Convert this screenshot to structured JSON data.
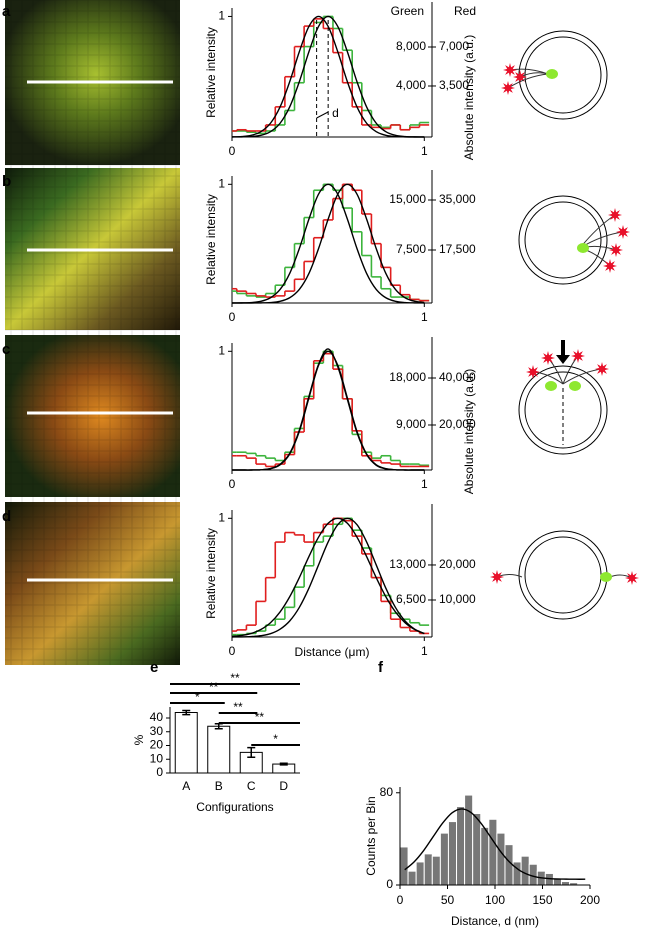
{
  "chart_data": [
    {
      "type": "line",
      "panel_label": "a",
      "ylabel": "Relative intensity",
      "y2label": "Absolute intensity (a.u.)",
      "green_label": "Green",
      "red_label": "Red",
      "annotation": "d",
      "xlim": [
        0,
        1.04
      ],
      "xticks": [
        0,
        1
      ],
      "ylim": [
        0,
        1.07
      ],
      "yticks": [
        1
      ],
      "y2lim": [
        -1230,
        12000
      ],
      "y2ticks": [
        {
          "value": 4000,
          "label": "4,000"
        },
        {
          "value": 8000,
          "label": "8,000"
        }
      ],
      "y3lim": [
        -1080,
        10500
      ],
      "y3ticks": [
        {
          "value": 3500,
          "label": "3,500"
        },
        {
          "value": 7000,
          "label": "7,000"
        }
      ],
      "x": [
        0,
        0.05,
        0.1,
        0.15,
        0.2,
        0.25,
        0.3,
        0.35,
        0.4,
        0.45,
        0.5,
        0.55,
        0.6,
        0.65,
        0.7,
        0.75,
        0.8,
        0.85,
        0.9,
        0.95,
        1
      ],
      "series": [
        {
          "style": "step",
          "color": "#3cb43c",
          "values": [
            0.05,
            0.05,
            0.04,
            0.03,
            0.05,
            0.1,
            0.22,
            0.45,
            0.75,
            0.95,
            1.0,
            0.9,
            0.72,
            0.45,
            0.22,
            0.1,
            0.08,
            0.1,
            0.06,
            0.1,
            0.12
          ]
        },
        {
          "style": "step",
          "color": "#e01e1e",
          "values": [
            0.05,
            0.06,
            0.05,
            0.05,
            0.1,
            0.25,
            0.5,
            0.75,
            0.92,
            0.98,
            0.9,
            0.7,
            0.45,
            0.25,
            0.1,
            0.08,
            0.07,
            0.1,
            0.06,
            0.08,
            0.1
          ]
        },
        {
          "style": "line",
          "color": "#000000",
          "values": [
            0,
            0.001,
            0.004,
            0.014,
            0.044,
            0.114,
            0.249,
            0.458,
            0.707,
            0.917,
            1,
            0.917,
            0.707,
            0.458,
            0.249,
            0.114,
            0.044,
            0.014,
            0.004,
            0.001,
            0
          ]
        },
        {
          "style": "line",
          "color": "#000000",
          "values": [
            0.001,
            0.004,
            0.014,
            0.044,
            0.114,
            0.249,
            0.458,
            0.707,
            0.917,
            1,
            0.917,
            0.707,
            0.458,
            0.249,
            0.114,
            0.044,
            0.014,
            0.004,
            0.001,
            0,
            0
          ]
        }
      ]
    },
    {
      "type": "line",
      "panel_label": "b",
      "ylabel": "Relative intensity",
      "xlim": [
        0,
        1.04
      ],
      "xticks": [
        0,
        1
      ],
      "ylim": [
        0,
        1.07
      ],
      "yticks": [
        1
      ],
      "y2lim": [
        -450,
        18600
      ],
      "y2ticks": [
        {
          "value": 7500,
          "label": "7,500"
        },
        {
          "value": 15000,
          "label": "15,000"
        }
      ],
      "y3lim": [
        -1050,
        43400
      ],
      "y3ticks": [
        {
          "value": 17500,
          "label": "17,500"
        },
        {
          "value": 35000,
          "label": "35,000"
        }
      ],
      "x": [
        0,
        0.05,
        0.1,
        0.15,
        0.2,
        0.25,
        0.3,
        0.35,
        0.4,
        0.45,
        0.5,
        0.55,
        0.6,
        0.65,
        0.7,
        0.75,
        0.8,
        0.85,
        0.9,
        0.95,
        1
      ],
      "series": [
        {
          "style": "step",
          "color": "#3cb43c",
          "values": [
            0.1,
            0.08,
            0.06,
            0.05,
            0.08,
            0.15,
            0.3,
            0.5,
            0.72,
            0.95,
            1,
            0.95,
            0.8,
            0.6,
            0.4,
            0.22,
            0.12,
            0.05,
            0.05,
            0.03,
            0.02
          ]
        },
        {
          "style": "step",
          "color": "#e01e1e",
          "values": [
            0.12,
            0.1,
            0.08,
            0.06,
            0.05,
            0.06,
            0.1,
            0.2,
            0.35,
            0.55,
            0.7,
            0.88,
            1,
            0.95,
            0.75,
            0.5,
            0.3,
            0.15,
            0.07,
            0.03,
            0.02
          ]
        },
        {
          "style": "line",
          "color": "#000000",
          "values": [
            0,
            0.001,
            0.004,
            0.014,
            0.044,
            0.114,
            0.249,
            0.458,
            0.707,
            0.917,
            1,
            0.917,
            0.707,
            0.458,
            0.249,
            0.114,
            0.044,
            0.014,
            0.004,
            0.001,
            0
          ]
        },
        {
          "style": "line",
          "color": "#000000",
          "values": [
            0,
            0,
            0,
            0.001,
            0.004,
            0.014,
            0.044,
            0.114,
            0.249,
            0.458,
            0.707,
            0.917,
            1,
            0.917,
            0.707,
            0.458,
            0.249,
            0.114,
            0.044,
            0.014,
            0.004
          ]
        }
      ]
    },
    {
      "type": "line",
      "panel_label": "c",
      "y2label": "Absolute intensity (a.u.)",
      "xlim": [
        0,
        1.04
      ],
      "xticks": [
        0,
        1
      ],
      "ylim": [
        0,
        1.07
      ],
      "yticks": [
        1
      ],
      "y2lim": [
        380,
        24700
      ],
      "y2ticks": [
        {
          "value": 9000,
          "label": "9,000"
        },
        {
          "value": 18000,
          "label": "18,000"
        }
      ],
      "y3lim": [
        850,
        54900
      ],
      "y3ticks": [
        {
          "value": 20000,
          "label": "20,000"
        },
        {
          "value": 40000,
          "label": "40,000"
        }
      ],
      "x": [
        0,
        0.05,
        0.1,
        0.15,
        0.2,
        0.25,
        0.3,
        0.35,
        0.4,
        0.45,
        0.5,
        0.55,
        0.6,
        0.65,
        0.7,
        0.75,
        0.8,
        0.85,
        0.9,
        0.95,
        1
      ],
      "series": [
        {
          "style": "step",
          "color": "#3cb43c",
          "values": [
            0.15,
            0.15,
            0.14,
            0.12,
            0.1,
            0.08,
            0.15,
            0.35,
            0.62,
            0.9,
            1,
            0.88,
            0.6,
            0.3,
            0.15,
            0.1,
            0.12,
            0.08,
            0.05,
            0.05,
            0.04
          ]
        },
        {
          "style": "step",
          "color": "#e01e1e",
          "values": [
            0.12,
            0.12,
            0.1,
            0.05,
            0.03,
            0.05,
            0.13,
            0.32,
            0.6,
            0.92,
            0.98,
            0.85,
            0.6,
            0.33,
            0.12,
            0.08,
            0.06,
            0.05,
            0.03,
            0.03,
            0.03
          ]
        },
        {
          "style": "line",
          "color": "#000000",
          "values": [
            0,
            0,
            0,
            0.002,
            0.011,
            0.044,
            0.135,
            0.325,
            0.607,
            0.882,
            1,
            0.882,
            0.607,
            0.325,
            0.135,
            0.044,
            0.011,
            0.002,
            0,
            0,
            0
          ]
        },
        {
          "style": "line",
          "color": "#000000",
          "values": [
            0,
            0,
            0,
            0.002,
            0.012,
            0.048,
            0.14,
            0.335,
            0.62,
            0.89,
            1.02,
            0.87,
            0.595,
            0.315,
            0.13,
            0.04,
            0.01,
            0.002,
            0,
            0,
            0
          ]
        }
      ]
    },
    {
      "type": "line",
      "panel_label": "d",
      "ylabel": "Relative intensity",
      "xlabel": "Distance (μm)",
      "xlim": [
        0,
        1.04
      ],
      "xticks": [
        0,
        1
      ],
      "ylim": [
        0,
        1.07
      ],
      "yticks": [
        1
      ],
      "y2lim": [
        -370,
        23200
      ],
      "y2ticks": [
        {
          "value": 6500,
          "label": "6,500"
        },
        {
          "value": 13000,
          "label": "13,000"
        }
      ],
      "y3lim": [
        -570,
        35700
      ],
      "y3ticks": [
        {
          "value": 10000,
          "label": "10,000"
        },
        {
          "value": 20000,
          "label": "20,000"
        }
      ],
      "x": [
        0,
        0.05,
        0.1,
        0.15,
        0.2,
        0.25,
        0.3,
        0.35,
        0.4,
        0.45,
        0.5,
        0.55,
        0.6,
        0.65,
        0.7,
        0.75,
        0.8,
        0.85,
        0.9,
        0.95,
        1
      ],
      "series": [
        {
          "style": "step",
          "color": "#3cb43c",
          "values": [
            0.02,
            0.02,
            0.03,
            0.05,
            0.1,
            0.15,
            0.25,
            0.42,
            0.6,
            0.8,
            0.85,
            0.95,
            1,
            0.9,
            0.75,
            0.5,
            0.35,
            0.2,
            0.15,
            0.12,
            0.1
          ]
        },
        {
          "style": "step",
          "color": "#e01e1e",
          "values": [
            0.05,
            0.06,
            0.1,
            0.3,
            0.5,
            0.8,
            0.88,
            0.86,
            0.8,
            0.88,
            0.95,
            1,
            0.98,
            0.85,
            0.7,
            0.5,
            0.3,
            0.15,
            0.08,
            0.05,
            0.03
          ]
        },
        {
          "style": "line",
          "color": "#000000",
          "values": [
            0,
            0.001,
            0.004,
            0.011,
            0.028,
            0.066,
            0.135,
            0.249,
            0.411,
            0.607,
            0.801,
            0.946,
            1,
            0.946,
            0.801,
            0.607,
            0.411,
            0.249,
            0.135,
            0.066,
            0.028
          ]
        },
        {
          "style": "line",
          "color": "#000000",
          "values": [
            0.005,
            0.013,
            0.03,
            0.063,
            0.12,
            0.211,
            0.339,
            0.5,
            0.678,
            0.841,
            0.958,
            1,
            0.958,
            0.841,
            0.678,
            0.5,
            0.339,
            0.211,
            0.12,
            0.063,
            0.03
          ]
        }
      ]
    },
    {
      "type": "bar",
      "panel_label": "e",
      "ylabel": "%",
      "xlabel": "Configurations",
      "categories": [
        "A",
        "B",
        "C",
        "D"
      ],
      "values": [
        44,
        34,
        15,
        6.5
      ],
      "errors": [
        1.5,
        1.8,
        3.5,
        0.6
      ],
      "color": "#ffffff",
      "ylim": [
        0,
        48
      ],
      "yticks": [
        0,
        10,
        20,
        30,
        40
      ],
      "annotations": [
        {
          "text": "**",
          "from": "A",
          "to": "D"
        },
        {
          "text": "**",
          "from": "A",
          "to": "C"
        },
        {
          "text": "*",
          "from": "A",
          "to": "B"
        },
        {
          "text": "**",
          "from": "B",
          "to": "C"
        },
        {
          "text": "**",
          "from": "B",
          "to": "D"
        },
        {
          "text": "*",
          "from": "C",
          "to": "D"
        }
      ]
    },
    {
      "type": "histogram",
      "panel_label": "f",
      "ylabel": "Counts per Bin",
      "xlabel": "Distance, d (nm)",
      "color": "#777777",
      "bins": [
        0,
        8.5,
        17,
        25.5,
        34,
        42.5,
        51,
        59.5,
        68,
        76.5,
        85,
        93.5,
        102,
        110.5,
        119,
        127.5,
        136,
        144.5,
        153,
        161.5,
        170,
        178.5,
        187
      ],
      "values": [
        33,
        12,
        20,
        27,
        25,
        45,
        55,
        68,
        78,
        62,
        50,
        57,
        45,
        35,
        20,
        25,
        18,
        12,
        10,
        6,
        3,
        2
      ],
      "xlim": [
        0,
        200
      ],
      "xticks": [
        0,
        50,
        100,
        150,
        200
      ],
      "ylim": [
        0,
        85
      ],
      "yticks": [
        0,
        80
      ],
      "line": {
        "color": "#000000",
        "x": [
          5,
          15,
          25,
          35,
          45,
          55,
          65,
          75,
          85,
          95,
          105,
          115,
          125,
          135,
          145,
          155,
          165,
          175,
          185,
          195
        ],
        "values": [
          13.2,
          20.2,
          30,
          42,
          53.8,
          62.7,
          66,
          62.7,
          53.8,
          42,
          30,
          20.2,
          13.2,
          9,
          6.7,
          5.7,
          5.2,
          5.1,
          5,
          5
        ]
      }
    }
  ]
}
